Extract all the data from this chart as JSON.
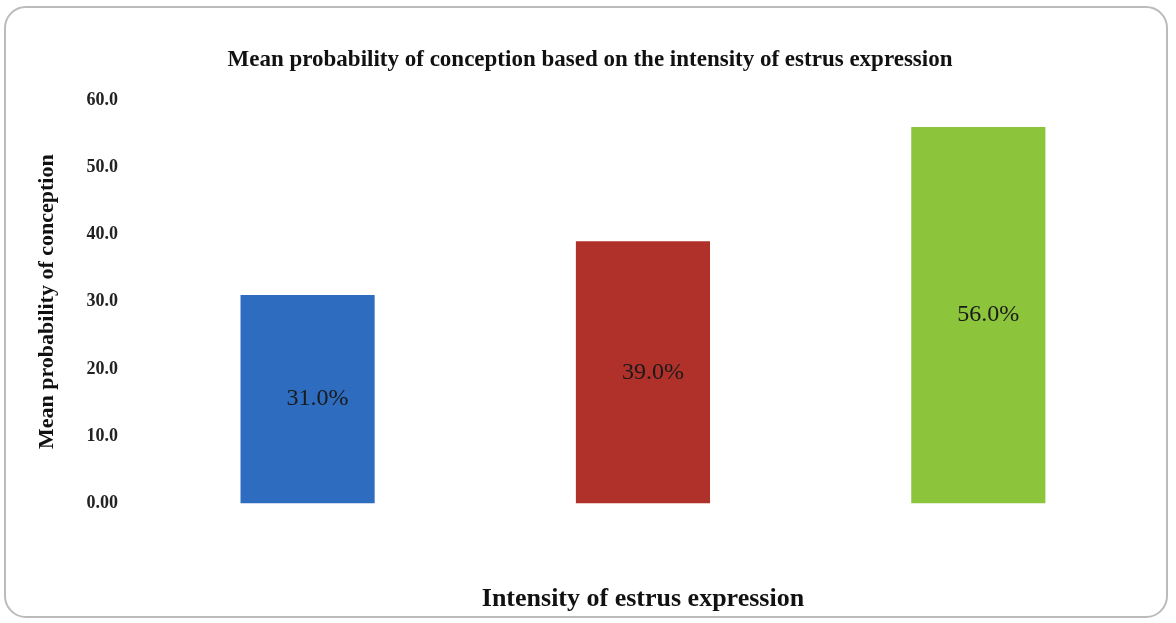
{
  "chart_data": {
    "type": "bar",
    "title": "Mean probability of conception based on the intensity of estrus expression",
    "xlabel": "Intensity of estrus expression",
    "ylabel": "Mean probability of conception",
    "categories": [
      null,
      null,
      null
    ],
    "values": [
      31,
      39,
      56
    ],
    "colors": [
      "#2e6cbf",
      "#b0302a",
      "#8cc43c"
    ],
    "value_labels": [
      "31.0%",
      "39.0%",
      "56.0%"
    ],
    "ylim": [
      0,
      60
    ],
    "yticks": [
      {
        "value": 0,
        "label": "0.00"
      },
      {
        "value": 10,
        "label": "10.0"
      },
      {
        "value": 20,
        "label": "20.0"
      },
      {
        "value": 30,
        "label": "30.0"
      },
      {
        "value": 40,
        "label": "40.0"
      },
      {
        "value": 50,
        "label": "50.0"
      },
      {
        "value": 60,
        "label": "60.0"
      }
    ],
    "grid": false,
    "legend": false
  }
}
